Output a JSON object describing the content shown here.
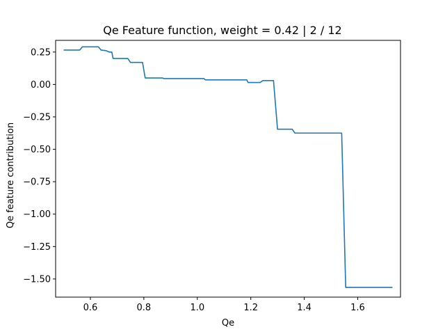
{
  "chart_data": {
    "type": "line",
    "title": "Qe Feature function, weight = 0.42 | 2 / 12",
    "xlabel": "Qe",
    "ylabel": "Qe feature contribution",
    "xlim": [
      0.47,
      1.76
    ],
    "ylim": [
      -1.64,
      0.34
    ],
    "xticks": [
      0.6,
      0.8,
      1.0,
      1.2,
      1.4,
      1.6
    ],
    "xtick_labels": [
      "0.6",
      "0.8",
      "1.0",
      "1.2",
      "1.4",
      "1.6"
    ],
    "yticks": [
      0.25,
      0.0,
      -0.25,
      -0.5,
      -0.75,
      -1.0,
      -1.25,
      -1.5
    ],
    "ytick_labels": [
      "0.25",
      "0.00",
      "−0.25",
      "−0.50",
      "−0.75",
      "−1.00",
      "−1.25",
      "−1.50"
    ],
    "grid": false,
    "series": [
      {
        "color": "#1f77b4",
        "x": [
          0.5,
          0.56,
          0.57,
          0.63,
          0.64,
          0.66,
          0.67,
          0.68,
          0.685,
          0.74,
          0.75,
          0.795,
          0.805,
          0.87,
          0.875,
          1.025,
          1.03,
          1.185,
          1.19,
          1.235,
          1.245,
          1.285,
          1.3,
          1.355,
          1.365,
          1.54,
          1.555,
          1.73
        ],
        "y": [
          0.265,
          0.265,
          0.29,
          0.29,
          0.265,
          0.26,
          0.25,
          0.25,
          0.2,
          0.2,
          0.17,
          0.17,
          0.05,
          0.05,
          0.045,
          0.045,
          0.035,
          0.035,
          0.015,
          0.015,
          0.03,
          0.03,
          -0.345,
          -0.345,
          -0.375,
          -0.375,
          -1.565,
          -1.565
        ]
      }
    ]
  }
}
